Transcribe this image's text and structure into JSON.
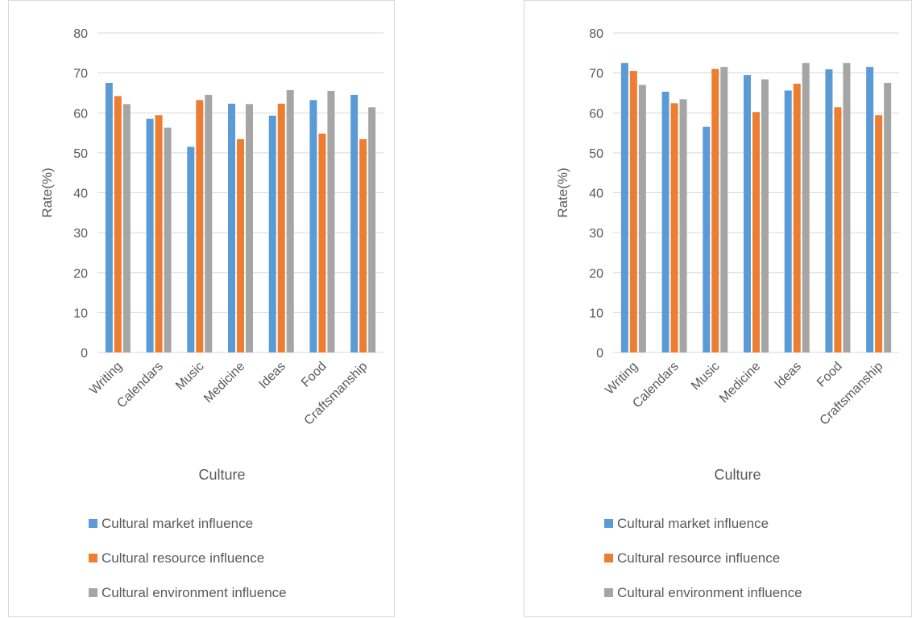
{
  "colors": {
    "market": "#5B9BD5",
    "resource": "#ED7D31",
    "environment": "#A5A5A5",
    "grid": "#d9d9d9"
  },
  "chart_data": [
    {
      "type": "bar",
      "title": "",
      "xlabel": "Culture",
      "ylabel": "Rate(%)",
      "ylim": [
        0,
        80
      ],
      "yticks": [
        0,
        10,
        20,
        30,
        40,
        50,
        60,
        70,
        80
      ],
      "grid": true,
      "legend": "bottom",
      "categories": [
        "Writing",
        "Calendars",
        "Music",
        "Medicine",
        "Ideas",
        "Food",
        "Craftsmanship"
      ],
      "series": [
        {
          "name": "Cultural market influence",
          "color": "#5B9BD5",
          "values": [
            67.5,
            58.5,
            51.5,
            62.3,
            59.3,
            63.2,
            64.5
          ]
        },
        {
          "name": "Cultural resource influence",
          "color": "#ED7D31",
          "values": [
            64.2,
            59.4,
            63.2,
            53.4,
            62.3,
            54.8,
            53.4
          ]
        },
        {
          "name": "Cultural environment influence",
          "color": "#A5A5A5",
          "values": [
            62.2,
            56.3,
            64.5,
            62.2,
            65.7,
            65.5,
            61.4
          ]
        }
      ]
    },
    {
      "type": "bar",
      "title": "",
      "xlabel": "Culture",
      "ylabel": "Rate(%)",
      "ylim": [
        0,
        80
      ],
      "yticks": [
        0,
        10,
        20,
        30,
        40,
        50,
        60,
        70,
        80
      ],
      "grid": true,
      "legend": "bottom",
      "categories": [
        "Writing",
        "Calendars",
        "Music",
        "Medicine",
        "Ideas",
        "Food",
        "Craftsmanship"
      ],
      "series": [
        {
          "name": "Cultural market influence",
          "color": "#5B9BD5",
          "values": [
            72.5,
            65.3,
            56.5,
            69.5,
            65.6,
            70.9,
            71.5
          ]
        },
        {
          "name": "Cultural resource influence",
          "color": "#ED7D31",
          "values": [
            70.5,
            62.4,
            71.0,
            60.2,
            67.3,
            61.4,
            59.4
          ]
        },
        {
          "name": "Cultural environment influence",
          "color": "#A5A5A5",
          "values": [
            67.0,
            63.4,
            71.5,
            68.4,
            72.5,
            72.5,
            67.5
          ]
        }
      ]
    }
  ]
}
